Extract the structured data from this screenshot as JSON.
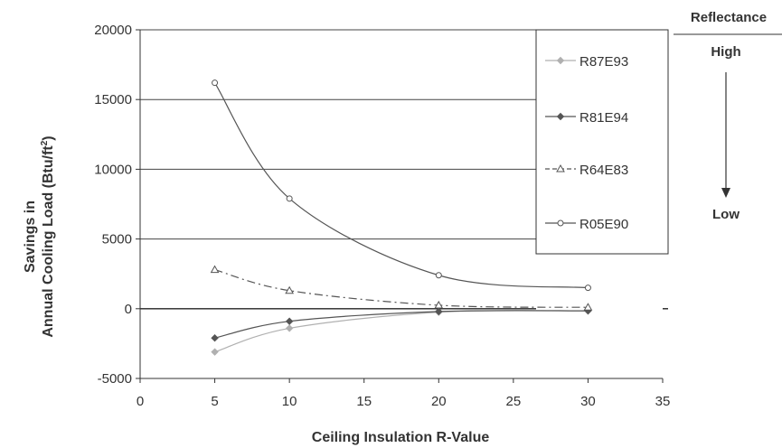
{
  "chart_data": {
    "type": "line",
    "xlabel": "Ceiling Insulation R-Value",
    "ylabel_line1": "Savings in",
    "ylabel_line2": "Annual Cooling Load (Btu/ft",
    "ylabel_sup": "2",
    "ylabel_close": ")",
    "xlim": [
      0,
      35
    ],
    "ylim": [
      -5000,
      20000
    ],
    "xticks": [
      0,
      5,
      10,
      15,
      20,
      25,
      30,
      35
    ],
    "yticks": [
      -5000,
      0,
      5000,
      10000,
      15000,
      20000
    ],
    "grid": "horizontal",
    "legend_position": "right",
    "series": [
      {
        "name": "R87E93",
        "color": "#b0b0b0",
        "marker": "diamond",
        "dash": "solid",
        "x": [
          5,
          10,
          20,
          30
        ],
        "y": [
          -3100,
          -1400,
          -250,
          -150
        ]
      },
      {
        "name": "R81E94",
        "color": "#555555",
        "marker": "diamond",
        "dash": "solid",
        "x": [
          5,
          10,
          20,
          30
        ],
        "y": [
          -2100,
          -900,
          -200,
          -150
        ]
      },
      {
        "name": "R64E83",
        "color": "#555555",
        "marker": "triangle",
        "dash": "dashed",
        "x": [
          5,
          10,
          20,
          30
        ],
        "y": [
          2800,
          1300,
          250,
          100
        ]
      },
      {
        "name": "R05E90",
        "color": "#555555",
        "marker": "circle",
        "dash": "solid",
        "x": [
          5,
          10,
          20,
          30
        ],
        "y": [
          16200,
          7900,
          2400,
          1500
        ]
      }
    ]
  },
  "reflectance_scale": {
    "title": "Reflectance",
    "high_label": "High",
    "low_label": "Low"
  }
}
